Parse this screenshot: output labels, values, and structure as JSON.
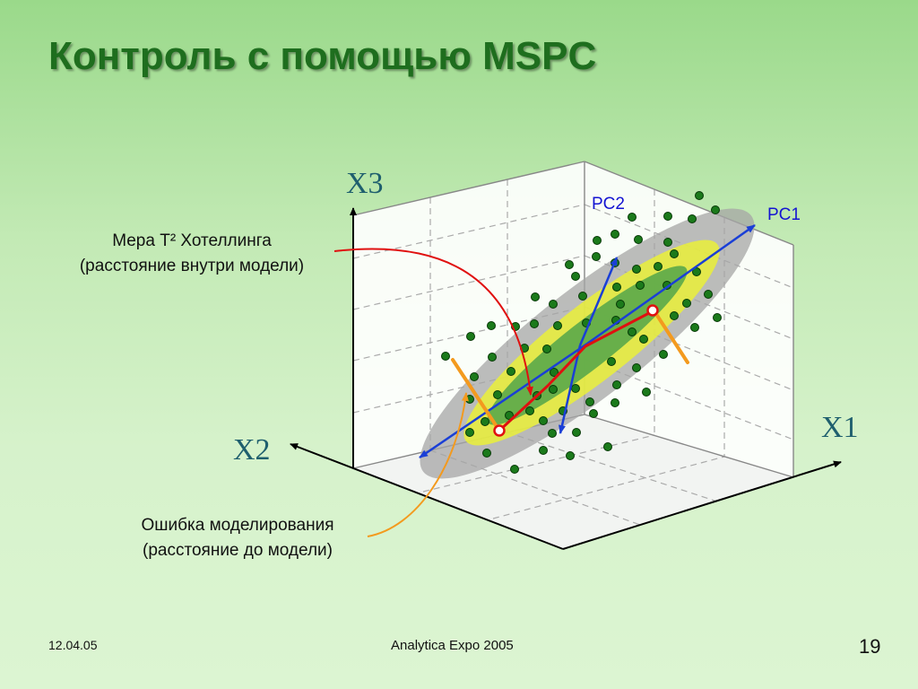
{
  "slide": {
    "title": "Контроль с помощью MSPC",
    "date": "12.04.05",
    "footer_center": "Analytica Expo 2005",
    "page_number": "19"
  },
  "axes": {
    "x1": "X1",
    "x2": "X2",
    "x3": "X3"
  },
  "components": {
    "pc1": "PC1",
    "pc2": "PC2"
  },
  "annotations": {
    "hotelling_line1": "Мера T² Хотеллинга",
    "hotelling_line2": "(расстояние внутри модели)",
    "error_line1": "Ошибка моделирования",
    "error_line2": "(расстояние до модели)"
  },
  "colors": {
    "title": "#1e6e1e",
    "axis_label": "#1f5f6e",
    "pc_label": "#1414d2",
    "pc_arrow": "#1a3fd6",
    "hotelling_path": "#e01010",
    "error_segments": "#f39a1e",
    "points": "#1b7a1b",
    "outer_ellipse": "#a6a6a6",
    "mid_ellipse": "#e8ee3c",
    "inner_ellipse": "#5aa84a"
  }
}
